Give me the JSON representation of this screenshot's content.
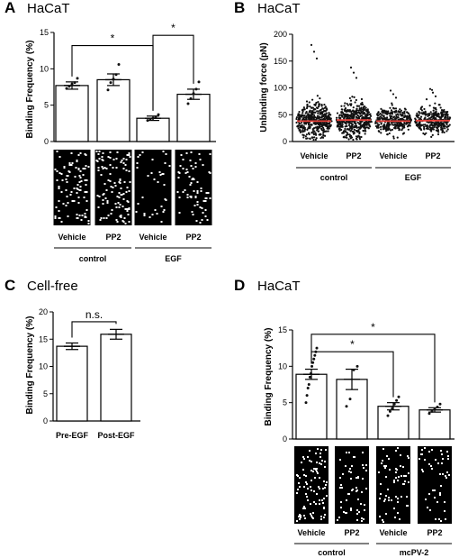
{
  "colors": {
    "mean_line": "#e8413a",
    "dots": "#111111",
    "bars": "#ffffff",
    "tile": "#000000",
    "tile_dot": "#ffffff"
  },
  "chart_data": [
    {
      "panel": "A",
      "title": "HaCaT",
      "type": "bar",
      "ylabel": "Binding Frequency (%)",
      "ylim": [
        0,
        15
      ],
      "yticks": [
        0,
        5,
        10,
        15
      ],
      "categories": [
        "Vehicle",
        "PP2",
        "Vehicle",
        "PP2"
      ],
      "groups": [
        {
          "label": "control",
          "span": [
            0,
            1
          ]
        },
        {
          "label": "EGF",
          "span": [
            2,
            3
          ]
        }
      ],
      "values": [
        7.7,
        8.5,
        3.2,
        6.5
      ],
      "errors": [
        0.5,
        0.8,
        0.3,
        0.7
      ],
      "points": [
        [
          7.3,
          7.6,
          7.9,
          8.1,
          8.7
        ],
        [
          7.1,
          8.1,
          8.6,
          9.2,
          10.6
        ],
        [
          2.9,
          3.1,
          3.2,
          3.4,
          3.7
        ],
        [
          5.2,
          5.9,
          6.6,
          7.2,
          8.2
        ]
      ],
      "significance": [
        {
          "from": 0,
          "to": 2,
          "label": "*",
          "y": 13.2
        },
        {
          "from": 2,
          "to": 3,
          "label": "*",
          "y": 14.6
        }
      ]
    },
    {
      "panel": "B",
      "title": "HaCaT",
      "type": "scatter",
      "ylabel": "Unbinding force (pN)",
      "ylim": [
        0,
        200
      ],
      "yticks": [
        0,
        50,
        100,
        150,
        200
      ],
      "categories": [
        "Vehicle",
        "PP2",
        "Vehicle",
        "PP2"
      ],
      "groups": [
        {
          "label": "control",
          "span": [
            0,
            1
          ]
        },
        {
          "label": "EGF",
          "span": [
            2,
            3
          ]
        }
      ],
      "means": [
        38,
        40,
        38,
        39
      ],
      "max_values": [
        180,
        138,
        95,
        98
      ]
    },
    {
      "panel": "C",
      "title": "Cell-free",
      "type": "bar",
      "ylabel": "Binding Frequency (%)",
      "ylim": [
        0,
        20
      ],
      "yticks": [
        0,
        5,
        10,
        15,
        20
      ],
      "categories": [
        "Pre-EGF",
        "Post-EGF"
      ],
      "values": [
        13.7,
        15.9
      ],
      "errors": [
        0.6,
        0.9
      ],
      "significance": [
        {
          "from": 0,
          "to": 1,
          "label": "n.s.",
          "y": 18.2
        }
      ]
    },
    {
      "panel": "D",
      "title": "HaCaT",
      "type": "bar",
      "ylabel": "Binding Frequency (%)",
      "ylim": [
        0,
        15
      ],
      "yticks": [
        0,
        5,
        10,
        15
      ],
      "categories": [
        "Vehicle",
        "PP2",
        "Vehicle",
        "PP2"
      ],
      "groups": [
        {
          "label": "control",
          "span": [
            0,
            1
          ]
        },
        {
          "label": "mcPV-2",
          "span": [
            2,
            3
          ]
        }
      ],
      "values": [
        8.9,
        8.2,
        4.5,
        4.0
      ],
      "errors": [
        0.7,
        1.4,
        0.5,
        0.3
      ],
      "points": [
        [
          5.0,
          6.0,
          7.0,
          7.5,
          8.5,
          9.0,
          10.0,
          10.5,
          11.0,
          11.5,
          12.0,
          12.5
        ],
        [
          4.5,
          5.5,
          9.5,
          10.0
        ],
        [
          3.2,
          3.8,
          4.2,
          4.8,
          5.3,
          5.8
        ],
        [
          3.5,
          3.8,
          4.1,
          4.4,
          4.8
        ]
      ],
      "significance": [
        {
          "from": 0,
          "to": 2,
          "label": "*",
          "y": 12.0
        },
        {
          "from": 0,
          "to": 3,
          "label": "*",
          "y": 14.4
        }
      ]
    }
  ]
}
